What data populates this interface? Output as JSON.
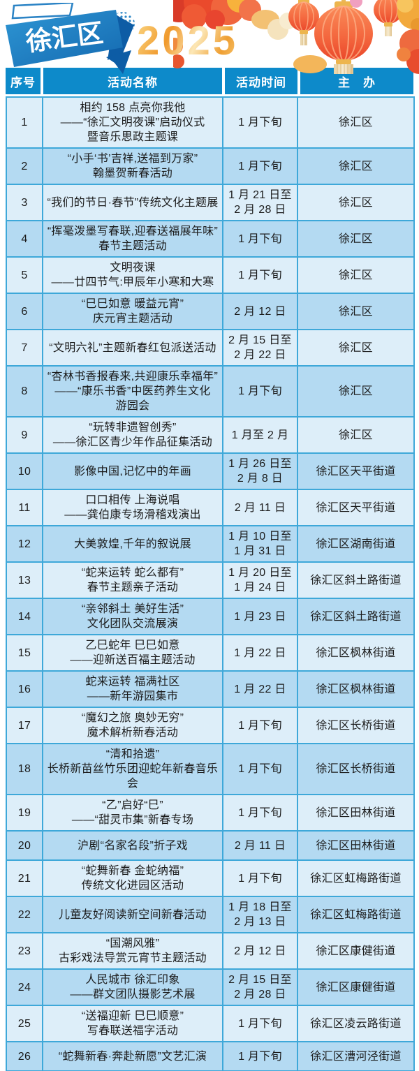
{
  "page": {
    "district_badge": "徐汇区",
    "year": "2025"
  },
  "colors": {
    "header_bg": "#0d8aca",
    "row_light": "#ddeef9",
    "row_dark": "#b4daf2",
    "border": "#3ea8d9",
    "banner_blue": "#1b7cc4",
    "banner_dark": "#0d5ca5",
    "lantern_red": "#ee4f2d",
    "gold": "#f2b14a"
  },
  "icons": [
    "lantern-icon",
    "peony-flower-icon",
    "gold-flower-icon",
    "cloud-icon",
    "halftone-dots-icon"
  ],
  "table": {
    "headers": [
      "序号",
      "活动名称",
      "活动时间",
      "主　办"
    ],
    "rows": [
      {
        "no": "1",
        "name": "相约 158 点亮你我他\n——“徐汇文明夜课”启动仪式\n暨音乐思政主题课",
        "time": "1 月下旬",
        "org": "徐汇区"
      },
      {
        "no": "2",
        "name": "“小手‘书’吉祥,送福到万家”\n翰墨贺新春活动",
        "time": "1 月下旬",
        "org": "徐汇区"
      },
      {
        "no": "3",
        "name": "“我们的节日·春节”传统文化主题展",
        "time": "1 月 21 日至\n2 月 28 日",
        "org": "徐汇区"
      },
      {
        "no": "4",
        "name": "“挥毫泼墨写春联,迎春送福展年味”\n春节主题活动",
        "time": "1 月下旬",
        "org": "徐汇区"
      },
      {
        "no": "5",
        "name": "文明夜课\n——廿四节气:甲辰年小寒和大寒",
        "time": "1 月下旬",
        "org": "徐汇区"
      },
      {
        "no": "6",
        "name": "“巳巳如意 暖益元宵”\n庆元宵主题活动",
        "time": "2 月 12 日",
        "org": "徐汇区"
      },
      {
        "no": "7",
        "name": "“文明六礼”主题新春红包派送活动",
        "time": "2 月 15 日至\n2 月 22 日",
        "org": "徐汇区"
      },
      {
        "no": "8",
        "name": "“杏林书香报春来,共迎康乐幸福年”\n——“康乐书香”中医药养生文化\n游园会",
        "time": "1 月下旬",
        "org": "徐汇区"
      },
      {
        "no": "9",
        "name": "“玩转非遗智创秀”\n——徐汇区青少年作品征集活动",
        "time": "1 月至 2 月",
        "org": "徐汇区"
      },
      {
        "no": "10",
        "name": "影像中国,记忆中的年画",
        "time": "1 月 26 日至\n2 月 8 日",
        "org": "徐汇区天平街道"
      },
      {
        "no": "11",
        "name": "口口相传 上海说唱\n——龚伯康专场滑稽戏演出",
        "time": "2 月 11 日",
        "org": "徐汇区天平街道"
      },
      {
        "no": "12",
        "name": "大美敦煌,千年的叙说展",
        "time": "1 月 10 日至\n1 月 31 日",
        "org": "徐汇区湖南街道"
      },
      {
        "no": "13",
        "name": "“蛇来运转 蛇么都有”\n春节主题亲子活动",
        "time": "1 月 20 日至\n1 月 24 日",
        "org": "徐汇区斜土路街道"
      },
      {
        "no": "14",
        "name": "“亲邻斜土 美好生活”\n文化团队交流展演",
        "time": "1 月 23 日",
        "org": "徐汇区斜土路街道"
      },
      {
        "no": "15",
        "name": "乙巳蛇年 巳巳如意\n——迎新送百福主题活动",
        "time": "1 月 22 日",
        "org": "徐汇区枫林街道"
      },
      {
        "no": "16",
        "name": "蛇来运转 福满社区\n——新年游园集市",
        "time": "1 月 22 日",
        "org": "徐汇区枫林街道"
      },
      {
        "no": "17",
        "name": "“魔幻之旅 奥妙无穷”\n魔术解析新春活动",
        "time": "1 月下旬",
        "org": "徐汇区长桥街道"
      },
      {
        "no": "18",
        "name": "“清和拾遗”\n长桥新苗丝竹乐团迎蛇年新春音乐会",
        "time": "1 月下旬",
        "org": "徐汇区长桥街道"
      },
      {
        "no": "19",
        "name": "“乙”启好“巳”\n——“甜灵市集”新春专场",
        "time": "1 月下旬",
        "org": "徐汇区田林街道"
      },
      {
        "no": "20",
        "name": "沪剧“名家名段”折子戏",
        "time": "2 月 11 日",
        "org": "徐汇区田林街道"
      },
      {
        "no": "21",
        "name": "“蛇舞新春 金蛇纳福”\n传统文化进园区活动",
        "time": "1 月下旬",
        "org": "徐汇区虹梅路街道"
      },
      {
        "no": "22",
        "name": "儿童友好阅读新空间新春活动",
        "time": "1 月 18 日至\n2 月 13 日",
        "org": "徐汇区虹梅路街道"
      },
      {
        "no": "23",
        "name": "“国潮风雅”\n古彩戏法导赏元宵节主题活动",
        "time": "2 月 12 日",
        "org": "徐汇区康健街道"
      },
      {
        "no": "24",
        "name": "人民城市 徐汇印象\n——群文团队摄影艺术展",
        "time": "2 月 15 日至\n2 月 28 日",
        "org": "徐汇区康健街道"
      },
      {
        "no": "25",
        "name": "“送福迎新 巳巳顺意”\n写春联送福字活动",
        "time": "1 月下旬",
        "org": "徐汇区凌云路街道"
      },
      {
        "no": "26",
        "name": "“蛇舞新春·奔赴新愿”文艺汇演",
        "time": "1 月下旬",
        "org": "徐汇区漕河泾街道"
      }
    ]
  }
}
